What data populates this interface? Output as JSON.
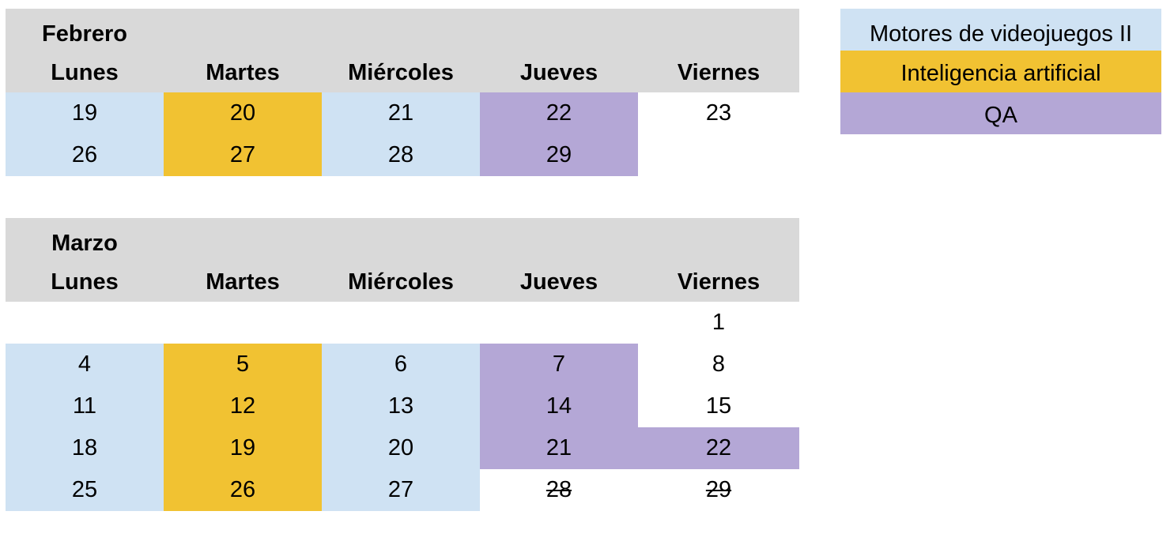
{
  "colors": {
    "header": "#d9d9d9",
    "motores": "#cfe2f3",
    "ia": "#f1c232",
    "qa": "#b4a7d6"
  },
  "weekdays": [
    "Lunes",
    "Martes",
    "Miércoles",
    "Jueves",
    "Viernes"
  ],
  "legend": [
    {
      "label": "Motores de videojuegos II",
      "color": "#cfe2f3"
    },
    {
      "label": "Inteligencia artificial",
      "color": "#f1c232"
    },
    {
      "label": "QA",
      "color": "#b4a7d6"
    }
  ],
  "february": {
    "title": "Febrero",
    "rows": [
      [
        {
          "d": "19",
          "c": "blue"
        },
        {
          "d": "20",
          "c": "yellow"
        },
        {
          "d": "21",
          "c": "blue"
        },
        {
          "d": "22",
          "c": "purple"
        },
        {
          "d": "23",
          "c": ""
        }
      ],
      [
        {
          "d": "26",
          "c": "blue"
        },
        {
          "d": "27",
          "c": "yellow"
        },
        {
          "d": "28",
          "c": "blue"
        },
        {
          "d": "29",
          "c": "purple"
        },
        {
          "d": "",
          "c": ""
        }
      ]
    ]
  },
  "march": {
    "title": "Marzo",
    "rows": [
      [
        {
          "d": "",
          "c": ""
        },
        {
          "d": "",
          "c": ""
        },
        {
          "d": "",
          "c": ""
        },
        {
          "d": "",
          "c": ""
        },
        {
          "d": "1",
          "c": ""
        }
      ],
      [
        {
          "d": "4",
          "c": "blue"
        },
        {
          "d": "5",
          "c": "yellow"
        },
        {
          "d": "6",
          "c": "blue"
        },
        {
          "d": "7",
          "c": "purple"
        },
        {
          "d": "8",
          "c": ""
        }
      ],
      [
        {
          "d": "11",
          "c": "blue"
        },
        {
          "d": "12",
          "c": "yellow"
        },
        {
          "d": "13",
          "c": "blue"
        },
        {
          "d": "14",
          "c": "purple"
        },
        {
          "d": "15",
          "c": ""
        }
      ],
      [
        {
          "d": "18",
          "c": "blue"
        },
        {
          "d": "19",
          "c": "yellow"
        },
        {
          "d": "20",
          "c": "blue"
        },
        {
          "d": "21",
          "c": "purple"
        },
        {
          "d": "22",
          "c": "purple"
        }
      ],
      [
        {
          "d": "25",
          "c": "blue"
        },
        {
          "d": "26",
          "c": "yellow"
        },
        {
          "d": "27",
          "c": "blue"
        },
        {
          "d": "28",
          "c": "",
          "strike": true
        },
        {
          "d": "29",
          "c": "",
          "strike": true
        }
      ]
    ]
  }
}
